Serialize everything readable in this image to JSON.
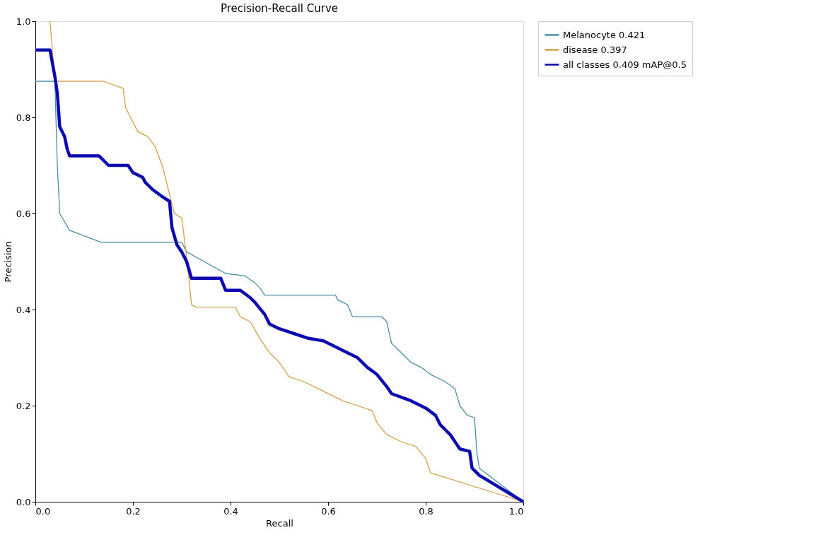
{
  "chart_data": {
    "type": "line",
    "title": "Precision-Recall Curve",
    "xlabel": "Recall",
    "ylabel": "Precision",
    "xlim": [
      0,
      1
    ],
    "ylim": [
      0,
      1
    ],
    "xticks": [
      {
        "value": 0,
        "label": "0.0"
      },
      0.2,
      0.4,
      0.6,
      0.8,
      {
        "value": 1,
        "label": "1.0"
      }
    ],
    "yticks": [
      {
        "value": 0,
        "label": "0.0"
      },
      0.2,
      0.4,
      0.6,
      0.8,
      {
        "value": 1,
        "label": "1.0"
      }
    ],
    "grid": false,
    "legend": "top right",
    "line_style": "solid",
    "marker": "none",
    "series": [
      {
        "name": "Melanocyte 0.421",
        "color": "#4a8fa8",
        "x": [
          0,
          0.04,
          0.045,
          0.05,
          0.07,
          0.135,
          0.3,
          0.31,
          0.39,
          0.43,
          0.45,
          0.46,
          0.47,
          0.615,
          0.62,
          0.64,
          0.65,
          0.71,
          0.72,
          0.73,
          0.75,
          0.77,
          0.79,
          0.81,
          0.84,
          0.86,
          0.87,
          0.885,
          0.9,
          0.905,
          0.91,
          1.0
        ],
        "values": [
          0.875,
          0.875,
          0.7,
          0.6,
          0.565,
          0.54,
          0.54,
          0.52,
          0.475,
          0.47,
          0.455,
          0.445,
          0.43,
          0.43,
          0.42,
          0.41,
          0.385,
          0.385,
          0.375,
          0.33,
          0.31,
          0.29,
          0.28,
          0.265,
          0.25,
          0.235,
          0.2,
          0.18,
          0.175,
          0.1,
          0.07,
          0
        ]
      },
      {
        "name": "disease 0.397",
        "color": "#d4a04a",
        "x": [
          0.03,
          0.04,
          0.14,
          0.18,
          0.185,
          0.195,
          0.21,
          0.23,
          0.245,
          0.26,
          0.285,
          0.3,
          0.31,
          0.32,
          0.33,
          0.41,
          0.42,
          0.44,
          0.46,
          0.48,
          0.5,
          0.52,
          0.55,
          0.58,
          0.61,
          0.63,
          0.66,
          0.69,
          0.7,
          0.72,
          0.75,
          0.78,
          0.8,
          0.81,
          1.0
        ],
        "values": [
          1.0,
          0.875,
          0.875,
          0.86,
          0.82,
          0.8,
          0.77,
          0.76,
          0.74,
          0.7,
          0.6,
          0.59,
          0.51,
          0.41,
          0.405,
          0.405,
          0.385,
          0.375,
          0.34,
          0.31,
          0.29,
          0.26,
          0.25,
          0.235,
          0.22,
          0.21,
          0.2,
          0.19,
          0.165,
          0.14,
          0.125,
          0.115,
          0.09,
          0.06,
          0
        ]
      },
      {
        "name": "all classes 0.409 mAP@0.5",
        "color": "#0a0ab0",
        "x": [
          0,
          0.03,
          0.04,
          0.045,
          0.05,
          0.06,
          0.065,
          0.07,
          0.13,
          0.14,
          0.15,
          0.19,
          0.2,
          0.22,
          0.225,
          0.24,
          0.26,
          0.275,
          0.28,
          0.29,
          0.3,
          0.31,
          0.32,
          0.38,
          0.39,
          0.42,
          0.44,
          0.45,
          0.47,
          0.48,
          0.5,
          0.53,
          0.56,
          0.59,
          0.61,
          0.64,
          0.66,
          0.68,
          0.7,
          0.72,
          0.73,
          0.77,
          0.8,
          0.82,
          0.83,
          0.85,
          0.87,
          0.89,
          0.895,
          0.91,
          1.0
        ],
        "values": [
          0.94,
          0.94,
          0.885,
          0.85,
          0.78,
          0.76,
          0.735,
          0.72,
          0.72,
          0.71,
          0.7,
          0.7,
          0.685,
          0.675,
          0.665,
          0.65,
          0.635,
          0.625,
          0.57,
          0.535,
          0.52,
          0.5,
          0.465,
          0.465,
          0.44,
          0.44,
          0.425,
          0.415,
          0.39,
          0.37,
          0.36,
          0.35,
          0.34,
          0.335,
          0.325,
          0.31,
          0.3,
          0.28,
          0.265,
          0.24,
          0.225,
          0.21,
          0.195,
          0.18,
          0.16,
          0.14,
          0.11,
          0.105,
          0.07,
          0.055,
          0
        ]
      }
    ]
  }
}
